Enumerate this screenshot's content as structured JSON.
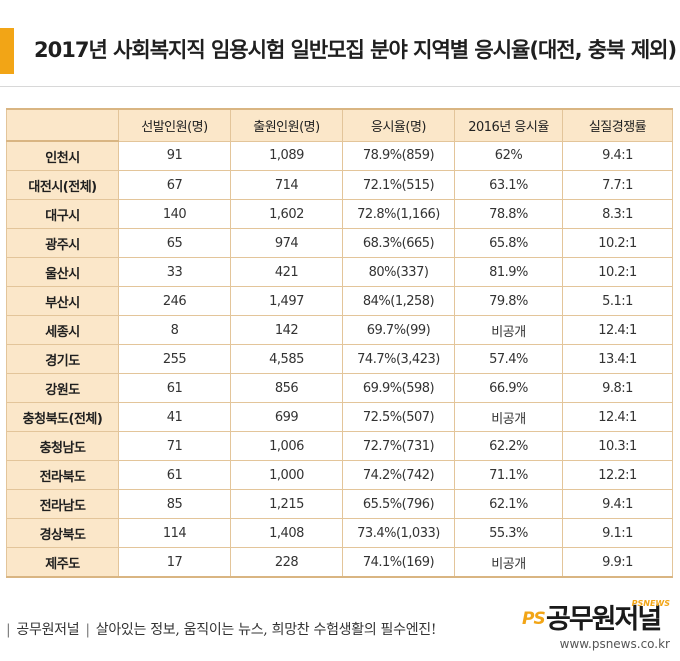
{
  "title": "2017년 사회복지직 임용시험 일반모집 분야 지역별 응시율(대전, 충북 제외)",
  "colors": {
    "accent": "#f2a516",
    "header_bg": "#fbe7c9",
    "border": "#e3c59a"
  },
  "table": {
    "headers": [
      "",
      "선발인원(명)",
      "출원인원(명)",
      "응시율(명)",
      "2016년 응시율",
      "실질경쟁률"
    ],
    "rows": [
      {
        "region": "인천시",
        "selected": "91",
        "applied": "1,089",
        "rate": "78.9%(859)",
        "rate2016": "62%",
        "competition": "9.4:1"
      },
      {
        "region": "대전시(전체)",
        "selected": "67",
        "applied": "714",
        "rate": "72.1%(515)",
        "rate2016": "63.1%",
        "competition": "7.7:1"
      },
      {
        "region": "대구시",
        "selected": "140",
        "applied": "1,602",
        "rate": "72.8%(1,166)",
        "rate2016": "78.8%",
        "competition": "8.3:1"
      },
      {
        "region": "광주시",
        "selected": "65",
        "applied": "974",
        "rate": "68.3%(665)",
        "rate2016": "65.8%",
        "competition": "10.2:1"
      },
      {
        "region": "울산시",
        "selected": "33",
        "applied": "421",
        "rate": "80%(337)",
        "rate2016": "81.9%",
        "competition": "10.2:1"
      },
      {
        "region": "부산시",
        "selected": "246",
        "applied": "1,497",
        "rate": "84%(1,258)",
        "rate2016": "79.8%",
        "competition": "5.1:1"
      },
      {
        "region": "세종시",
        "selected": "8",
        "applied": "142",
        "rate": "69.7%(99)",
        "rate2016": "비공개",
        "competition": "12.4:1"
      },
      {
        "region": "경기도",
        "selected": "255",
        "applied": "4,585",
        "rate": "74.7%(3,423)",
        "rate2016": "57.4%",
        "competition": "13.4:1"
      },
      {
        "region": "강원도",
        "selected": "61",
        "applied": "856",
        "rate": "69.9%(598)",
        "rate2016": "66.9%",
        "competition": "9.8:1"
      },
      {
        "region": "충청북도(전체)",
        "selected": "41",
        "applied": "699",
        "rate": "72.5%(507)",
        "rate2016": "비공개",
        "competition": "12.4:1"
      },
      {
        "region": "충청남도",
        "selected": "71",
        "applied": "1,006",
        "rate": "72.7%(731)",
        "rate2016": "62.2%",
        "competition": "10.3:1"
      },
      {
        "region": "전라북도",
        "selected": "61",
        "applied": "1,000",
        "rate": "74.2%(742)",
        "rate2016": "71.1%",
        "competition": "12.2:1"
      },
      {
        "region": "전라남도",
        "selected": "85",
        "applied": "1,215",
        "rate": "65.5%(796)",
        "rate2016": "62.1%",
        "competition": "9.4:1"
      },
      {
        "region": "경상북도",
        "selected": "114",
        "applied": "1,408",
        "rate": "73.4%(1,033)",
        "rate2016": "55.3%",
        "competition": "9.1:1"
      },
      {
        "region": "제주도",
        "selected": "17",
        "applied": "228",
        "rate": "74.1%(169)",
        "rate2016": "비공개",
        "competition": "9.9:1"
      }
    ]
  },
  "footer": {
    "brand": "공무원저널",
    "slogan": "살아있는 정보, 움직이는 뉴스, 희망찬 수험생활의 필수엔진!",
    "logo_ps": "PS",
    "logo_name": "공무원저널",
    "logo_sub": "PSNEWS",
    "url": "www.psnews.co.kr"
  }
}
